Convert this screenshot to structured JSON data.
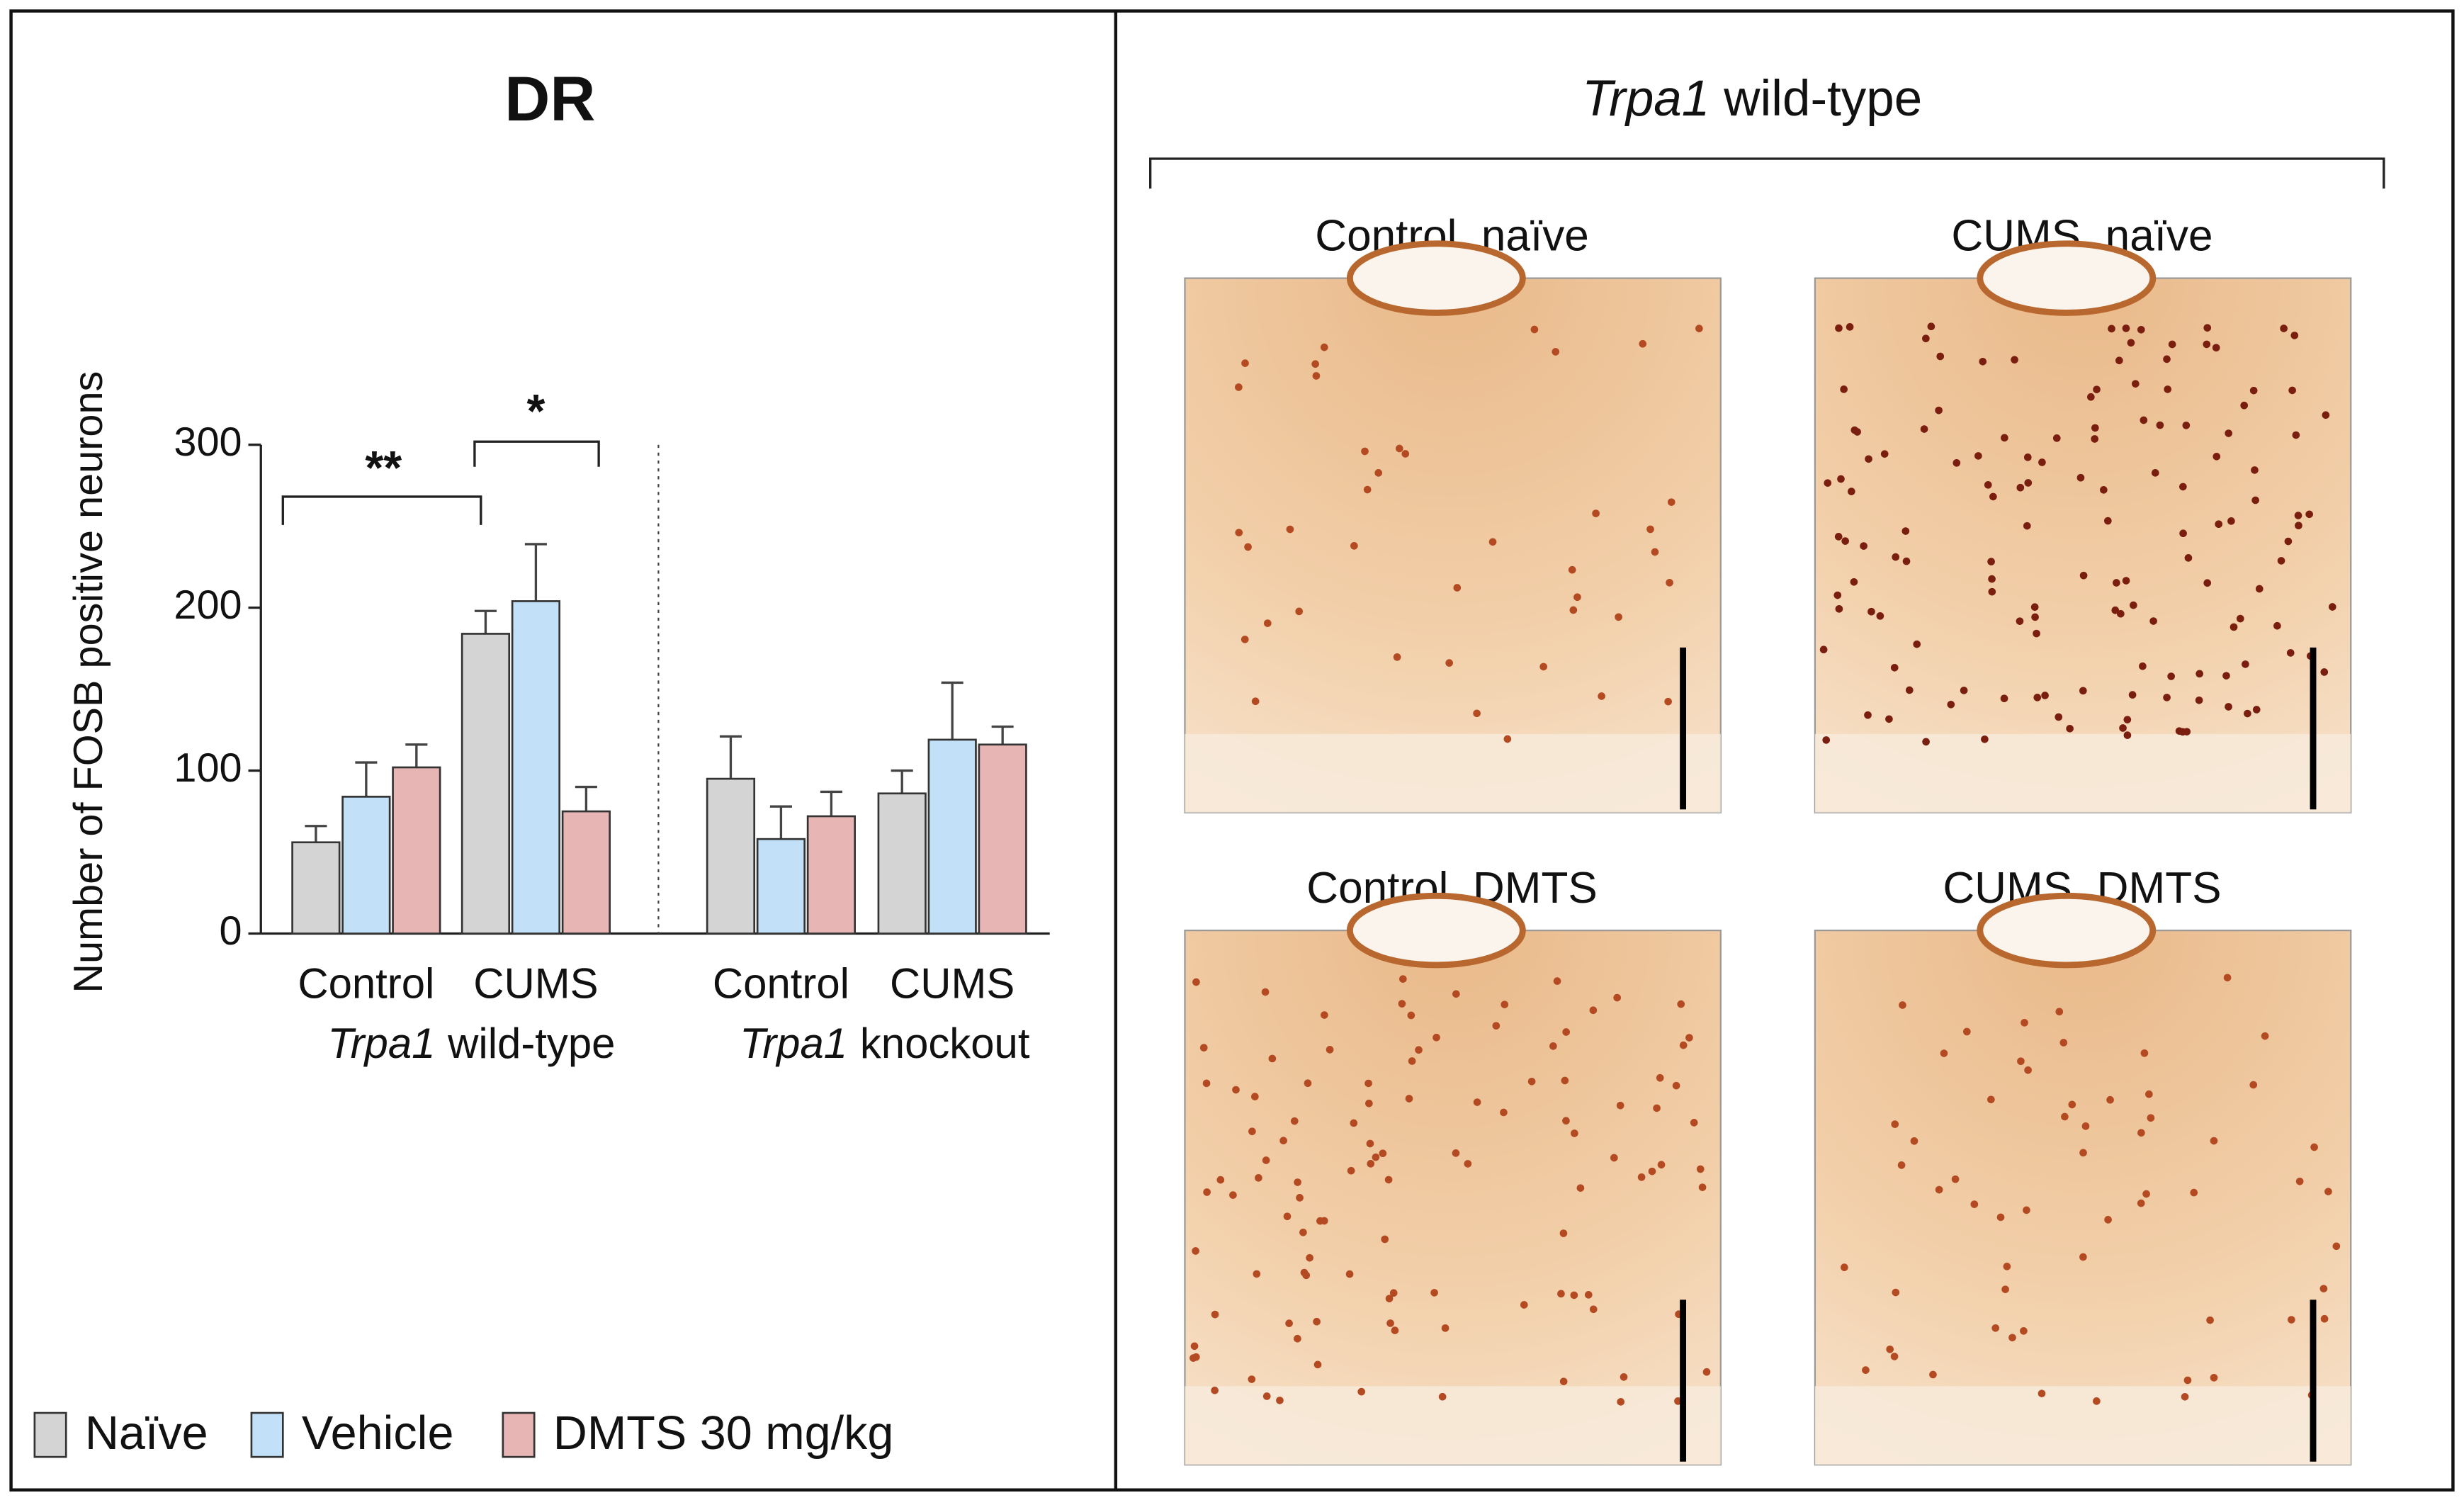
{
  "chart_data": {
    "type": "bar",
    "title": "DR",
    "y_label": "Number of FOSB positive neurons",
    "categories": [
      "Control",
      "CUMS",
      "Control",
      "CUMS"
    ],
    "groups": [
      {
        "gene": "Trpa1",
        "label": "wild-type"
      },
      {
        "gene": "Trpa1",
        "label": "knockout"
      }
    ],
    "series": [
      {
        "name": "Naïve",
        "color": "#d4d4d4",
        "values": [
          56,
          184,
          95,
          86
        ],
        "errors": [
          10,
          14,
          26,
          14
        ]
      },
      {
        "name": "Vehicle",
        "color": "#c2e1f8",
        "values": [
          84,
          204,
          58,
          119
        ],
        "errors": [
          21,
          35,
          20,
          35
        ]
      },
      {
        "name": "DMTS 30 mg/kg",
        "color": "#e8b5b5",
        "values": [
          102,
          75,
          72,
          116
        ],
        "errors": [
          14,
          15,
          15,
          11
        ]
      }
    ],
    "ylim": [
      0,
      300
    ],
    "yticks": [
      0,
      100,
      200,
      300
    ],
    "grid": false,
    "legend": "bottom",
    "annotations": [
      "**",
      "*"
    ]
  },
  "micrographs": {
    "title": {
      "gene": "Trpa1",
      "label": "wild-type"
    },
    "panels": [
      "Control, naïve",
      "CUMS, naïve",
      "Control, DMTS",
      "CUMS, DMTS"
    ]
  }
}
